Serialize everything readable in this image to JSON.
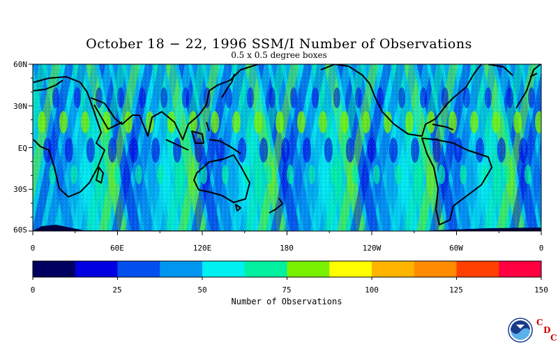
{
  "title": "October 18 − 22, 1996 SSM/I Number of Observations",
  "subtitle": "0.5 x 0.5 degree boxes",
  "lat_labels": [
    "60N",
    "30N",
    "EQ",
    "30S",
    "60S"
  ],
  "lon_labels": [
    "0",
    "60E",
    "120E",
    "180",
    "120W",
    "60W",
    "0"
  ],
  "colorbar": {
    "title": "Number of Observations",
    "ticks": [
      "0",
      "25",
      "50",
      "75",
      "100",
      "125",
      "150"
    ],
    "colors": [
      "#000060",
      "#0000e0",
      "#0050f0",
      "#0096f0",
      "#00f0f0",
      "#00f0a0",
      "#78f000",
      "#ffff00",
      "#ffb400",
      "#ff8c00",
      "#ff4000",
      "#ff0040"
    ]
  },
  "logo": {
    "icon": "noaa-logo-icon",
    "lettering": "NOAA"
  },
  "cdc_letters": [
    "C",
    "D",
    "C"
  ]
}
